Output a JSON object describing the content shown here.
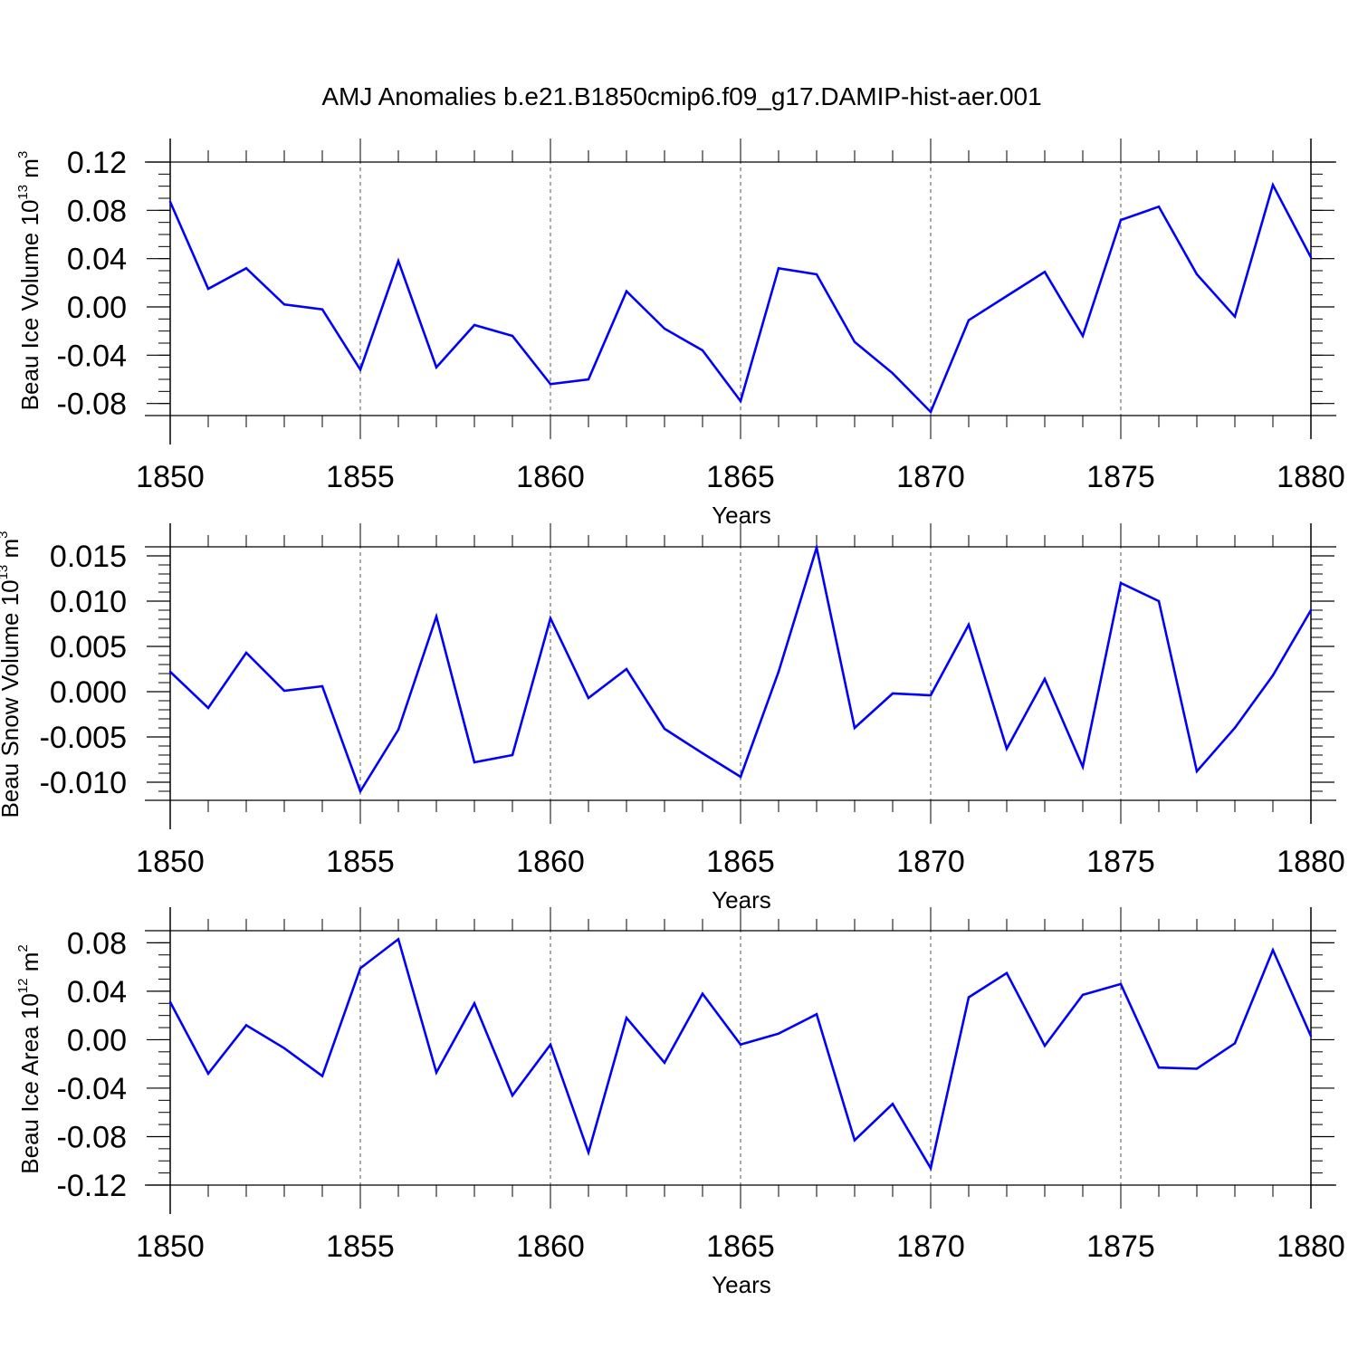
{
  "title": "AMJ Anomalies b.e21.B1850cmip6.f09_g17.DAMIP-hist-aer.001",
  "colors": {
    "line": "#0000ff",
    "axis": "#000000",
    "grid": "#555555"
  },
  "chart_data": [
    {
      "type": "line",
      "ylabel": "Beau Ice Volume 10",
      "ylabel_exp": "13",
      "ylabel_unit": " m",
      "ylabel_unit_exp": "3",
      "xlabel": "Years",
      "xlim": [
        1850,
        1880
      ],
      "ylim": [
        -0.09,
        0.12
      ],
      "yticks": [
        -0.08,
        -0.04,
        0.0,
        0.04,
        0.08,
        0.12
      ],
      "ytick_labels": [
        "-0.08",
        "-0.04",
        "0.00",
        "0.04",
        "0.08",
        "0.12"
      ],
      "yminor": 0.01,
      "xticks": [
        1850,
        1855,
        1860,
        1865,
        1870,
        1875,
        1880
      ],
      "xtick_labels": [
        "1850",
        "1855",
        "1860",
        "1865",
        "1870",
        "1875",
        "1880"
      ],
      "x": [
        1850,
        1851,
        1852,
        1853,
        1854,
        1855,
        1856,
        1857,
        1858,
        1859,
        1860,
        1861,
        1862,
        1863,
        1864,
        1865,
        1866,
        1867,
        1868,
        1869,
        1870,
        1871,
        1872,
        1873,
        1874,
        1875,
        1876,
        1877,
        1878,
        1879,
        1880
      ],
      "y": [
        0.087,
        0.015,
        0.032,
        0.002,
        -0.002,
        -0.052,
        0.038,
        -0.05,
        -0.015,
        -0.024,
        -0.064,
        -0.06,
        0.013,
        -0.018,
        -0.036,
        -0.078,
        0.032,
        0.027,
        -0.029,
        -0.055,
        -0.087,
        -0.011,
        0.009,
        0.029,
        -0.024,
        0.072,
        0.083,
        0.027,
        -0.008,
        0.101,
        0.041
      ]
    },
    {
      "type": "line",
      "ylabel": "Beau Snow Volume 10",
      "ylabel_exp": "13",
      "ylabel_unit": " m",
      "ylabel_unit_exp": "3",
      "xlabel": "Years",
      "xlim": [
        1850,
        1880
      ],
      "ylim": [
        -0.012,
        0.016
      ],
      "yticks": [
        -0.01,
        -0.005,
        0.0,
        0.005,
        0.01,
        0.015
      ],
      "ytick_labels": [
        "-0.010",
        "-0.005",
        "0.000",
        "0.005",
        "0.010",
        "0.015"
      ],
      "yminor": 0.001,
      "xticks": [
        1850,
        1855,
        1860,
        1865,
        1870,
        1875,
        1880
      ],
      "xtick_labels": [
        "1850",
        "1855",
        "1860",
        "1865",
        "1870",
        "1875",
        "1880"
      ],
      "x": [
        1850,
        1851,
        1852,
        1853,
        1854,
        1855,
        1856,
        1857,
        1858,
        1859,
        1860,
        1861,
        1862,
        1863,
        1864,
        1865,
        1866,
        1867,
        1868,
        1869,
        1870,
        1871,
        1872,
        1873,
        1874,
        1875,
        1876,
        1877,
        1878,
        1879,
        1880
      ],
      "y": [
        0.0022,
        -0.0018,
        0.0043,
        0.0001,
        0.0006,
        -0.011,
        -0.0042,
        0.0083,
        -0.0078,
        -0.007,
        0.0081,
        -0.0007,
        0.0025,
        -0.0041,
        -0.0068,
        -0.0094,
        0.0022,
        0.0159,
        -0.004,
        -0.0002,
        -0.0004,
        0.0074,
        -0.0063,
        0.0014,
        -0.0083,
        0.012,
        0.01,
        -0.0088,
        -0.004,
        0.0018,
        0.009
      ]
    },
    {
      "type": "line",
      "ylabel": "Beau Ice Area 10",
      "ylabel_exp": "12",
      "ylabel_unit": " m",
      "ylabel_unit_exp": "2",
      "xlabel": "Years",
      "xlim": [
        1850,
        1880
      ],
      "ylim": [
        -0.12,
        0.09
      ],
      "yticks": [
        -0.12,
        -0.08,
        -0.04,
        0.0,
        0.04,
        0.08
      ],
      "ytick_labels": [
        "-0.12",
        "-0.08",
        "-0.04",
        "0.00",
        "0.04",
        "0.08"
      ],
      "yminor": 0.01,
      "xticks": [
        1850,
        1855,
        1860,
        1865,
        1870,
        1875,
        1880
      ],
      "xtick_labels": [
        "1850",
        "1855",
        "1860",
        "1865",
        "1870",
        "1875",
        "1880"
      ],
      "x": [
        1850,
        1851,
        1852,
        1853,
        1854,
        1855,
        1856,
        1857,
        1858,
        1859,
        1860,
        1861,
        1862,
        1863,
        1864,
        1865,
        1866,
        1867,
        1868,
        1869,
        1870,
        1871,
        1872,
        1873,
        1874,
        1875,
        1876,
        1877,
        1878,
        1879,
        1880
      ],
      "y": [
        0.031,
        -0.028,
        0.012,
        -0.007,
        -0.03,
        0.059,
        0.083,
        -0.027,
        0.03,
        -0.046,
        -0.004,
        -0.093,
        0.018,
        -0.019,
        0.038,
        -0.004,
        0.005,
        0.021,
        -0.083,
        -0.053,
        -0.106,
        0.035,
        0.055,
        -0.005,
        0.037,
        0.046,
        -0.023,
        -0.024,
        -0.003,
        0.074,
        0.003
      ]
    }
  ]
}
